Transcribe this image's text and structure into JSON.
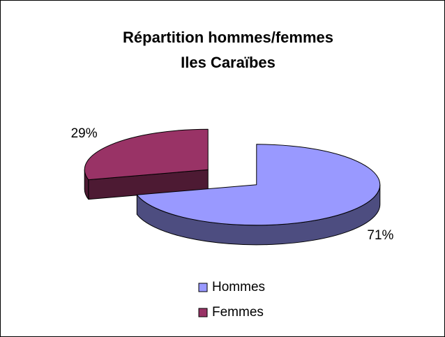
{
  "chart_data": {
    "type": "pie3d",
    "title": [
      "Répartition hommes/femmes",
      "Iles Caraïbes"
    ],
    "categories": [
      "Hommes",
      "Femmes"
    ],
    "values": [
      71,
      29
    ],
    "value_labels": [
      "71%",
      "29%"
    ],
    "colors": [
      "#9999ff",
      "#993366"
    ],
    "legend": "bottom"
  }
}
